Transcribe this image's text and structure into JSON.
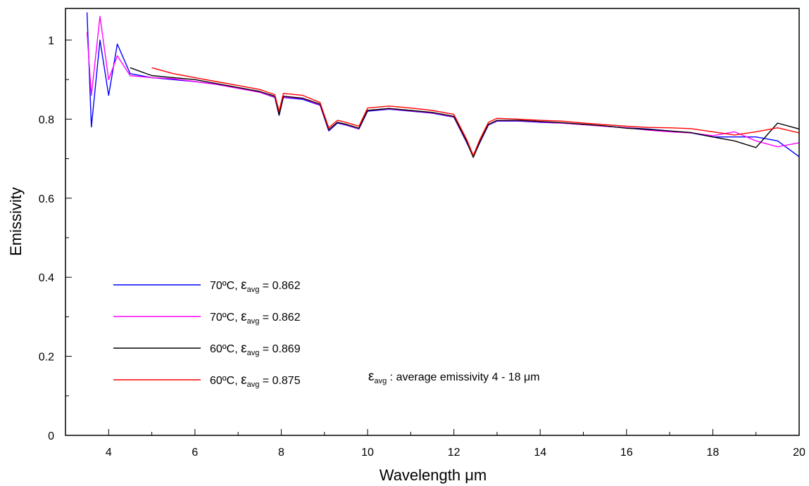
{
  "chart_data": {
    "type": "line",
    "xlabel": "Wavelength   μm",
    "ylabel": "Emissivity",
    "xlim": [
      3,
      20
    ],
    "ylim": [
      0,
      1.08
    ],
    "x_ticks": [
      "4",
      "6",
      "8",
      "10",
      "12",
      "14",
      "16",
      "18",
      "20"
    ],
    "y_ticks": [
      "0",
      "0.2",
      "0.4",
      "0.6",
      "0.8",
      "1"
    ],
    "grid": false,
    "legend_position": "bottom-left",
    "x": [
      3.5,
      3.6,
      3.8,
      4.0,
      4.2,
      4.5,
      5.0,
      5.5,
      6.0,
      6.5,
      7.0,
      7.5,
      7.85,
      7.95,
      8.05,
      8.5,
      8.9,
      9.1,
      9.3,
      9.5,
      9.8,
      10.0,
      10.5,
      11.0,
      11.5,
      12.0,
      12.3,
      12.45,
      12.6,
      12.8,
      13.0,
      13.5,
      14.0,
      14.5,
      15.0,
      15.5,
      16.0,
      16.5,
      17.0,
      17.5,
      18.0,
      18.5,
      19.0,
      19.5,
      20.0
    ],
    "series": [
      {
        "name": "70ºC, ε avg = 0.862",
        "color": "#0000ff",
        "values": [
          1.07,
          0.78,
          1.0,
          0.86,
          0.99,
          0.915,
          0.905,
          0.9,
          0.895,
          0.888,
          0.878,
          0.868,
          0.855,
          0.81,
          0.855,
          0.85,
          0.835,
          0.77,
          0.79,
          0.785,
          0.775,
          0.82,
          0.825,
          0.82,
          0.815,
          0.805,
          0.74,
          0.705,
          0.74,
          0.785,
          0.795,
          0.795,
          0.792,
          0.79,
          0.786,
          0.782,
          0.778,
          0.775,
          0.77,
          0.765,
          0.755,
          0.755,
          0.755,
          0.745,
          0.705
        ]
      },
      {
        "name": "70ºC, ε avg = 0.862",
        "color": "#ff00ff",
        "values": [
          1.02,
          0.86,
          1.06,
          0.9,
          0.96,
          0.91,
          0.905,
          0.902,
          0.895,
          0.888,
          0.878,
          0.868,
          0.856,
          0.815,
          0.856,
          0.852,
          0.836,
          0.772,
          0.792,
          0.786,
          0.776,
          0.822,
          0.826,
          0.821,
          0.816,
          0.806,
          0.742,
          0.708,
          0.742,
          0.786,
          0.796,
          0.796,
          0.793,
          0.79,
          0.786,
          0.782,
          0.778,
          0.772,
          0.768,
          0.765,
          0.758,
          0.768,
          0.745,
          0.73,
          0.74
        ]
      },
      {
        "name": "60ºC, ε avg = 0.869",
        "color": "#000000",
        "values": [
          null,
          null,
          null,
          null,
          null,
          0.93,
          0.91,
          0.905,
          0.9,
          0.89,
          0.88,
          0.87,
          0.858,
          0.81,
          0.858,
          0.853,
          0.838,
          0.773,
          0.792,
          0.787,
          0.777,
          0.822,
          0.827,
          0.822,
          0.817,
          0.807,
          0.743,
          0.703,
          0.742,
          0.787,
          0.797,
          0.797,
          0.794,
          0.791,
          0.787,
          0.783,
          0.777,
          0.774,
          0.77,
          0.766,
          0.755,
          0.745,
          0.728,
          0.79,
          0.775
        ]
      },
      {
        "name": "60ºC, ε avg = 0.875",
        "color": "#ff0000",
        "values": [
          null,
          null,
          null,
          null,
          null,
          null,
          0.93,
          0.915,
          0.905,
          0.895,
          0.885,
          0.875,
          0.862,
          0.82,
          0.865,
          0.86,
          0.842,
          0.778,
          0.797,
          0.792,
          0.782,
          0.828,
          0.833,
          0.828,
          0.822,
          0.812,
          0.748,
          0.708,
          0.748,
          0.792,
          0.802,
          0.8,
          0.797,
          0.795,
          0.79,
          0.786,
          0.782,
          0.779,
          0.778,
          0.776,
          0.768,
          0.76,
          0.768,
          0.778,
          0.765
        ]
      }
    ],
    "legend": [
      {
        "temp": "70ºC, ",
        "eps": "ε",
        "sub": "avg",
        "value": " = 0.862",
        "color": "#0000ff"
      },
      {
        "temp": "70ºC, ",
        "eps": "ε",
        "sub": "avg",
        "value": " = 0.862",
        "color": "#ff00ff"
      },
      {
        "temp": "60ºC, ",
        "eps": "ε",
        "sub": "avg",
        "value": " = 0.869",
        "color": "#000000"
      },
      {
        "temp": "60ºC, ",
        "eps": "ε",
        "sub": "avg",
        "value": " = 0.875",
        "color": "#ff0000"
      }
    ],
    "annotation": {
      "eps": "ε",
      "sub": "avg",
      "text": " : average emissivity 4 - 18 ",
      "unit": "μm"
    }
  }
}
